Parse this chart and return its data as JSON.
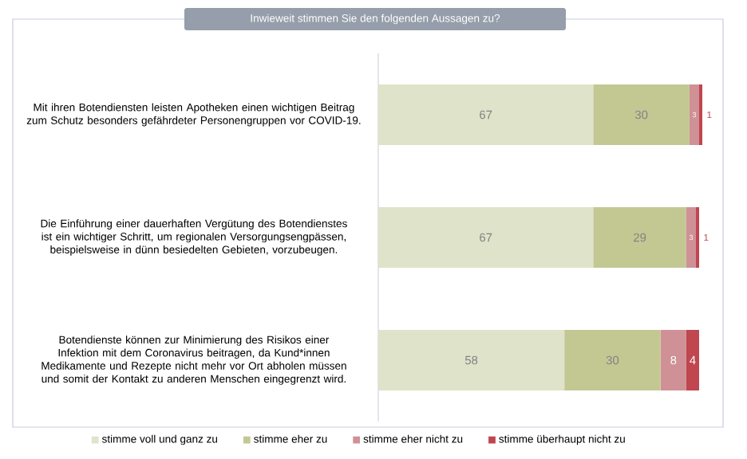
{
  "chart_data": {
    "type": "bar",
    "orientation": "horizontal",
    "stacked": true,
    "title": "Inwieweit stimmen Sie den folgenden Aussagen zu?",
    "categories": [
      "Mit ihren Botendiensten leisten Apotheken einen wichtigen Beitrag zum Schutz besonders gefährdeter Personengruppen vor COVID-19.",
      "Die Einführung einer dauerhaften Vergütung des Botendienstes ist ein wichtiger Schritt, um regionalen Versorgungsengpässen, beispielsweise in dünn besiedelten Gebieten, vorzubeugen.",
      "Botendienste können zur Minimierung des Risikos einer Infektion mit dem Coronavirus beitragen, da Kund*innen Medikamente und Rezepte nicht mehr vor Ort abholen müssen und somit der Kontakt zu anderen Menschen eingegrenzt wird."
    ],
    "series": [
      {
        "name": "stimme voll und ganz zu",
        "color": "#dfe3c9",
        "values": [
          67,
          67,
          58
        ]
      },
      {
        "name": "stimme eher zu",
        "color": "#c3c893",
        "values": [
          30,
          29,
          30
        ]
      },
      {
        "name": "stimme eher nicht zu",
        "color": "#cf9196",
        "values": [
          3,
          3,
          8
        ]
      },
      {
        "name": "stimme überhaupt nicht zu",
        "color": "#c0464f",
        "values": [
          1,
          1,
          4
        ]
      }
    ],
    "data_labels": true,
    "legend": "bottom",
    "tick_labels": "y"
  }
}
